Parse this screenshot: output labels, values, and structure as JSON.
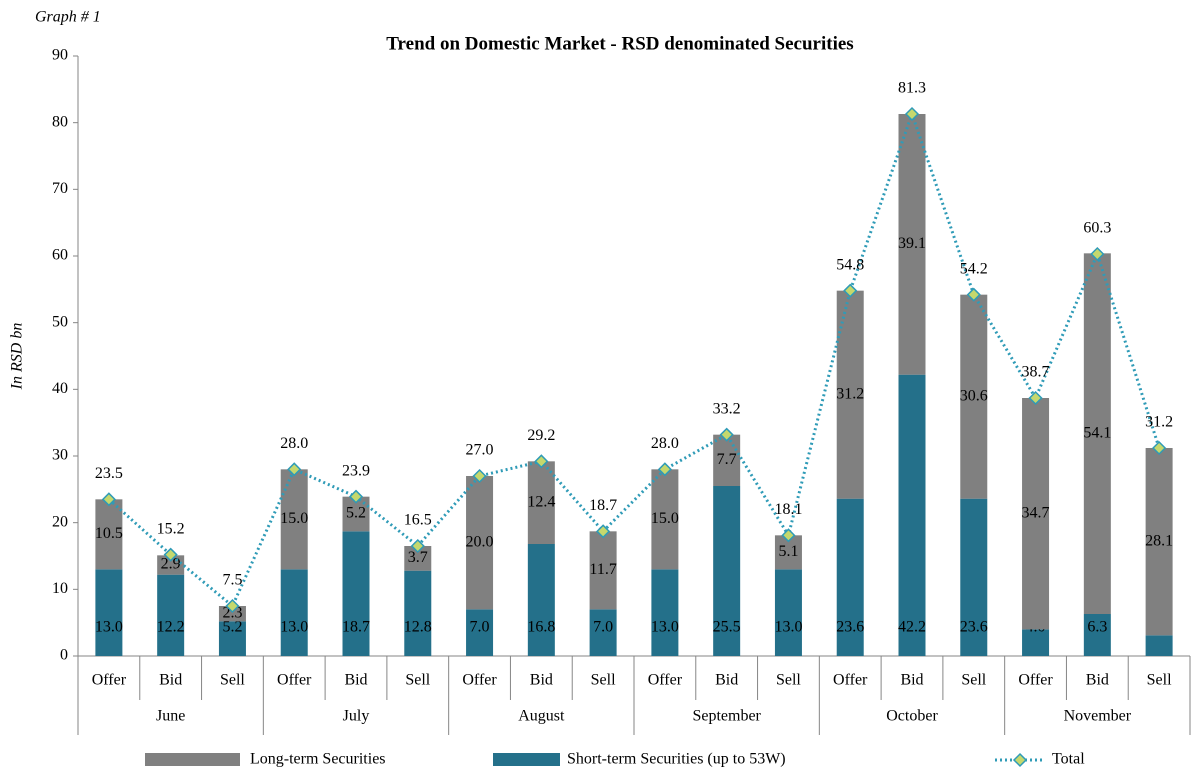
{
  "chart_data": {
    "type": "bar",
    "note": "Graph # 1",
    "title": "Trend on Domestic Market - RSD denominated Securities",
    "y_label": "In RSD bn",
    "categories": [
      "Offer",
      "Bid",
      "Sell",
      "Offer",
      "Bid",
      "Sell",
      "Offer",
      "Bid",
      "Sell",
      "Offer",
      "Bid",
      "Sell",
      "Offer",
      "Bid",
      "Sell",
      "Offer",
      "Bid",
      "Sell"
    ],
    "groups": [
      "June",
      "July",
      "August",
      "September",
      "October",
      "November"
    ],
    "stacked": true,
    "series": [
      {
        "name": "Short-term Securities (up to 53W)",
        "color": "#24708a",
        "values": [
          13.0,
          12.2,
          5.2,
          13.0,
          18.7,
          12.8,
          7.0,
          16.8,
          7.0,
          13.0,
          25.5,
          13.0,
          23.6,
          42.2,
          23.6,
          4.0,
          6.3,
          3.1
        ],
        "value_labels": [
          "13.0",
          "12.2",
          "5.2",
          "13.0",
          "18.7",
          "12.8",
          "7.0",
          "16.8",
          "7.0",
          "13.0",
          "25.5",
          "13.0",
          "23.6",
          "42.2",
          "23.6",
          "4.0",
          "6.3",
          "3.1"
        ]
      },
      {
        "name": "Long-term Securities",
        "color": "#808080",
        "values": [
          10.5,
          2.9,
          2.3,
          15.0,
          5.2,
          3.7,
          20.0,
          12.4,
          11.7,
          15.0,
          7.7,
          5.1,
          31.2,
          39.1,
          30.6,
          34.7,
          54.1,
          28.1
        ],
        "value_labels": [
          "10.5",
          "2.9",
          "2.3",
          "15.0",
          "5.2",
          "3.7",
          "20.0",
          "12.4",
          "11.7",
          "15.0",
          "7.7",
          "5.1",
          "31.2",
          "39.1",
          "30.6",
          "34.7",
          "54.1",
          "28.1"
        ]
      },
      {
        "name": "Total",
        "color": "#2f9bb7",
        "marker_color": "#c5d86d",
        "kind": "line",
        "values": [
          23.5,
          15.2,
          7.5,
          28.0,
          23.9,
          16.5,
          27.0,
          29.2,
          18.7,
          28.0,
          33.2,
          18.1,
          54.8,
          81.3,
          54.2,
          38.7,
          60.3,
          31.2
        ],
        "value_labels": [
          "23.5",
          "15.2",
          "7.5",
          "28.0",
          "23.9",
          "16.5",
          "27.0",
          "29.2",
          "18.7",
          "28.0",
          "33.2",
          "18.1",
          "54.8",
          "81.3",
          "54.2",
          "38.7",
          "60.3",
          "31.2"
        ]
      }
    ],
    "ylim": [
      0,
      90
    ],
    "yticks": [
      0,
      10,
      20,
      30,
      40,
      50,
      60,
      70,
      80,
      90
    ]
  }
}
